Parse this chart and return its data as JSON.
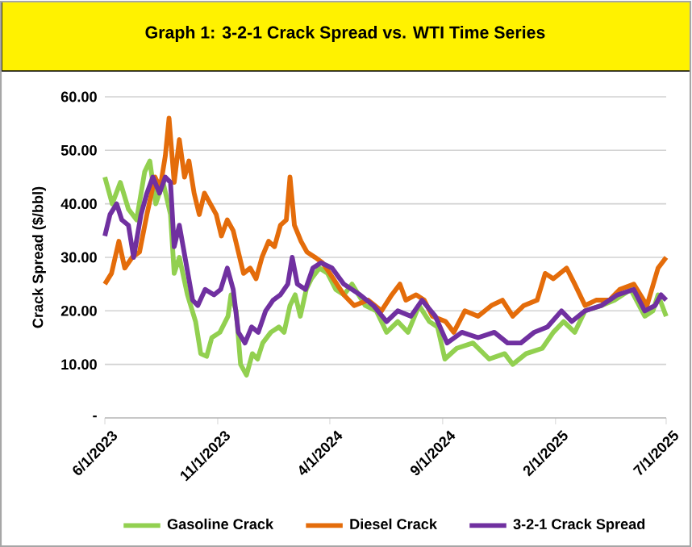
{
  "chart_data": {
    "type": "line",
    "title": "Graph 1: 3-2-1 Crack Spread vs. WTI Time Series",
    "ylabel": "Crack Spread ($/bbl)",
    "xlim": [
      "2023-06-01",
      "2025-07-01"
    ],
    "xticks": [
      {
        "value": "2023-06-01",
        "label": "6/1/2023"
      },
      {
        "value": "2023-11-01",
        "label": "11/1/2023"
      },
      {
        "value": "2024-04-01",
        "label": "4/1/2024"
      },
      {
        "value": "2024-09-01",
        "label": "9/1/2024"
      },
      {
        "value": "2025-02-01",
        "label": "2/1/2025"
      },
      {
        "value": "2025-07-01",
        "label": "7/1/2025"
      }
    ],
    "ylim": [
      0,
      60
    ],
    "yticks": [
      {
        "value": 0,
        "label": "-"
      },
      {
        "value": 10,
        "label": "10.00"
      },
      {
        "value": 20,
        "label": "20.00"
      },
      {
        "value": 30,
        "label": "30.00"
      },
      {
        "value": 40,
        "label": "40.00"
      },
      {
        "value": 50,
        "label": "50.00"
      },
      {
        "value": 60,
        "label": "60.00"
      }
    ],
    "grid": "y",
    "legend": "bottom",
    "marker": "none",
    "line_style": "solid",
    "series": [
      {
        "name": "Gasoline Crack",
        "color": "#92d050",
        "x": [
          "2023-06-01",
          "2023-06-11",
          "2023-06-22",
          "2023-07-03",
          "2023-07-14",
          "2023-07-25",
          "2023-08-01",
          "2023-08-09",
          "2023-08-19",
          "2023-08-29",
          "2023-09-03",
          "2023-09-10",
          "2023-09-21",
          "2023-10-02",
          "2023-10-09",
          "2023-10-17",
          "2023-10-24",
          "2023-11-04",
          "2023-11-15",
          "2023-11-19",
          "2023-11-26",
          "2023-12-02",
          "2023-12-10",
          "2023-12-18",
          "2023-12-25",
          "2024-01-01",
          "2024-01-12",
          "2024-01-23",
          "2024-01-30",
          "2024-02-07",
          "2024-02-14",
          "2024-02-21",
          "2024-02-29",
          "2024-03-07",
          "2024-03-18",
          "2024-03-29",
          "2024-04-09",
          "2024-04-20",
          "2024-05-01",
          "2024-05-19",
          "2024-06-03",
          "2024-06-17",
          "2024-07-02",
          "2024-07-16",
          "2024-07-31",
          "2024-08-14",
          "2024-08-25",
          "2024-09-04",
          "2024-09-20",
          "2024-10-12",
          "2024-11-03",
          "2024-11-24",
          "2024-12-05",
          "2024-12-23",
          "2025-01-14",
          "2025-01-29",
          "2025-02-12",
          "2025-02-27",
          "2025-03-13",
          "2025-04-04",
          "2025-04-22",
          "2025-05-14",
          "2025-06-02",
          "2025-06-13",
          "2025-06-20",
          "2025-07-01"
        ],
        "values": [
          45,
          40,
          44,
          39,
          37,
          46,
          48,
          40,
          44,
          38,
          27,
          30,
          23,
          18,
          12,
          11.5,
          15,
          16,
          19,
          23,
          20,
          10,
          8,
          12,
          11,
          14,
          16,
          17,
          16,
          21,
          23,
          19,
          24,
          26,
          28,
          27,
          24,
          23,
          25,
          21,
          20,
          16,
          18,
          16,
          21,
          18,
          17,
          11,
          13,
          14,
          11,
          12,
          10,
          12,
          13,
          16,
          18,
          16,
          20,
          21,
          22,
          24,
          19,
          20,
          23,
          19
        ]
      },
      {
        "name": "Diesel Crack",
        "color": "#e46c0a",
        "x": [
          "2023-06-01",
          "2023-06-10",
          "2023-06-20",
          "2023-06-28",
          "2023-07-08",
          "2023-07-18",
          "2023-07-28",
          "2023-08-08",
          "2023-08-15",
          "2023-08-22",
          "2023-08-27",
          "2023-09-03",
          "2023-09-10",
          "2023-09-17",
          "2023-09-23",
          "2023-09-30",
          "2023-10-07",
          "2023-10-14",
          "2023-10-22",
          "2023-10-30",
          "2023-11-06",
          "2023-11-14",
          "2023-11-22",
          "2023-11-29",
          "2023-12-06",
          "2023-12-15",
          "2023-12-23",
          "2023-12-31",
          "2024-01-09",
          "2024-01-17",
          "2024-01-25",
          "2024-02-02",
          "2024-02-07",
          "2024-02-13",
          "2024-02-22",
          "2024-03-01",
          "2024-03-12",
          "2024-03-22",
          "2024-04-01",
          "2024-04-20",
          "2024-05-04",
          "2024-05-23",
          "2024-06-10",
          "2024-06-24",
          "2024-07-05",
          "2024-07-13",
          "2024-07-27",
          "2024-08-07",
          "2024-08-18",
          "2024-09-05",
          "2024-09-16",
          "2024-10-01",
          "2024-10-19",
          "2024-11-06",
          "2024-11-21",
          "2024-12-05",
          "2024-12-20",
          "2025-01-07",
          "2025-01-18",
          "2025-01-29",
          "2025-02-16",
          "2025-02-27",
          "2025-03-13",
          "2025-03-28",
          "2025-04-15",
          "2025-04-29",
          "2025-05-18",
          "2025-06-05",
          "2025-06-20",
          "2025-07-01"
        ],
        "values": [
          25,
          27,
          33,
          28,
          30,
          31,
          38,
          45,
          43,
          49,
          56,
          44,
          52,
          45,
          48,
          42,
          38,
          42,
          40,
          38,
          34,
          37,
          35,
          31,
          27,
          28,
          26,
          30,
          33,
          32,
          36,
          37,
          45,
          36,
          33,
          31,
          30,
          29,
          27,
          23,
          21,
          22,
          20,
          23,
          25,
          22,
          23,
          22,
          19,
          18,
          16,
          20,
          19,
          21,
          22,
          19,
          21,
          22,
          27,
          26,
          28,
          25,
          21,
          22,
          22,
          24,
          25,
          21,
          28,
          30
        ]
      },
      {
        "name": "3-2-1 Crack Spread",
        "color": "#7030a0",
        "x": [
          "2023-06-01",
          "2023-06-08",
          "2023-06-17",
          "2023-06-24",
          "2023-07-03",
          "2023-07-10",
          "2023-07-20",
          "2023-07-28",
          "2023-08-05",
          "2023-08-14",
          "2023-08-22",
          "2023-08-29",
          "2023-09-03",
          "2023-09-10",
          "2023-09-19",
          "2023-09-28",
          "2023-10-05",
          "2023-10-15",
          "2023-10-27",
          "2023-11-05",
          "2023-11-14",
          "2023-11-22",
          "2023-11-29",
          "2023-12-08",
          "2023-12-17",
          "2023-12-26",
          "2024-01-05",
          "2024-01-15",
          "2024-01-25",
          "2024-02-04",
          "2024-02-10",
          "2024-02-17",
          "2024-02-28",
          "2024-03-09",
          "2024-03-20",
          "2024-04-04",
          "2024-04-20",
          "2024-05-12",
          "2024-05-30",
          "2024-06-17",
          "2024-07-02",
          "2024-07-20",
          "2024-08-04",
          "2024-08-22",
          "2024-09-07",
          "2024-09-27",
          "2024-10-19",
          "2024-11-10",
          "2024-11-28",
          "2024-12-16",
          "2025-01-03",
          "2025-01-21",
          "2025-02-09",
          "2025-02-23",
          "2025-03-13",
          "2025-04-04",
          "2025-04-26",
          "2025-05-18",
          "2025-06-02",
          "2025-06-16",
          "2025-06-24",
          "2025-07-01"
        ],
        "values": [
          34,
          38,
          40,
          37,
          36,
          30,
          38,
          42,
          45,
          42,
          45,
          44,
          32,
          36,
          29,
          22,
          21,
          24,
          23,
          24,
          28,
          24,
          16,
          14,
          17,
          16,
          20,
          22,
          23,
          25,
          30,
          25,
          24,
          28,
          29,
          28,
          25,
          23,
          21,
          18,
          20,
          19,
          22,
          19,
          14,
          16,
          15,
          16,
          14,
          14,
          16,
          17,
          20,
          18,
          20,
          21,
          23,
          24,
          20,
          21,
          23,
          22
        ]
      }
    ]
  }
}
